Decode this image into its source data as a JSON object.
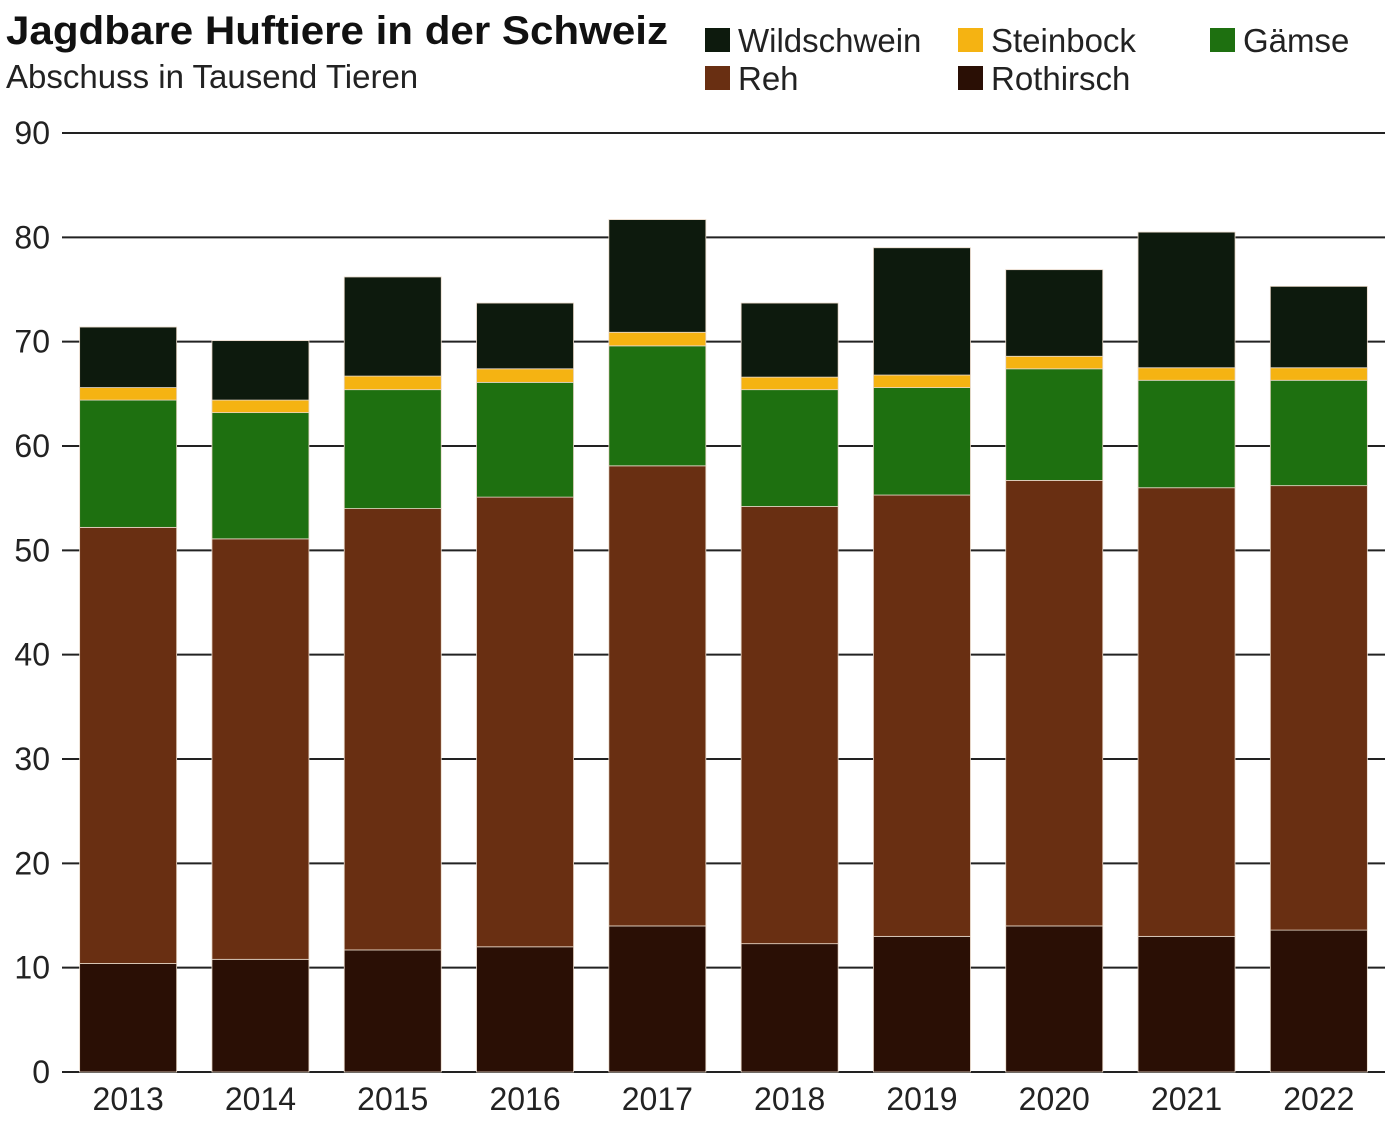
{
  "chart_data": {
    "type": "bar",
    "stacked": true,
    "title": "Jagdbare Huftiere in der Schweiz",
    "subtitle": "Abschuss in Tausend Tieren",
    "xlabel": "",
    "ylabel": "",
    "ylim": [
      0,
      90
    ],
    "yticks": [
      "0",
      "10",
      "20",
      "30",
      "40",
      "50",
      "60",
      "70",
      "80",
      "90"
    ],
    "grid": true,
    "legend_position": "top-right",
    "categories": [
      "2013",
      "2014",
      "2015",
      "2016",
      "2017",
      "2018",
      "2019",
      "2020",
      "2021",
      "2022"
    ],
    "series": [
      {
        "name": "Rothirsch",
        "color": "#2a0f05",
        "values": [
          10.4,
          10.8,
          11.7,
          12.0,
          14.0,
          12.3,
          13.0,
          14.0,
          13.0,
          13.6
        ]
      },
      {
        "name": "Reh",
        "color": "#692f12",
        "values": [
          41.8,
          40.3,
          42.3,
          43.1,
          44.1,
          41.9,
          42.3,
          42.7,
          43.0,
          42.6
        ]
      },
      {
        "name": "Gämse",
        "color": "#1e7010",
        "values": [
          12.2,
          12.1,
          11.4,
          11.0,
          11.5,
          11.2,
          10.3,
          10.7,
          10.3,
          10.1
        ]
      },
      {
        "name": "Steinbock",
        "color": "#f5b312",
        "values": [
          1.2,
          1.2,
          1.3,
          1.3,
          1.3,
          1.2,
          1.2,
          1.2,
          1.2,
          1.2
        ]
      },
      {
        "name": "Wildschwein",
        "color": "#0d1a0d",
        "values": [
          5.8,
          5.7,
          9.5,
          6.3,
          10.8,
          7.1,
          12.2,
          8.3,
          13.0,
          7.8
        ]
      }
    ],
    "legend_order": [
      "Wildschwein",
      "Steinbock",
      "Gämse",
      "Reh",
      "Rothirsch"
    ]
  }
}
